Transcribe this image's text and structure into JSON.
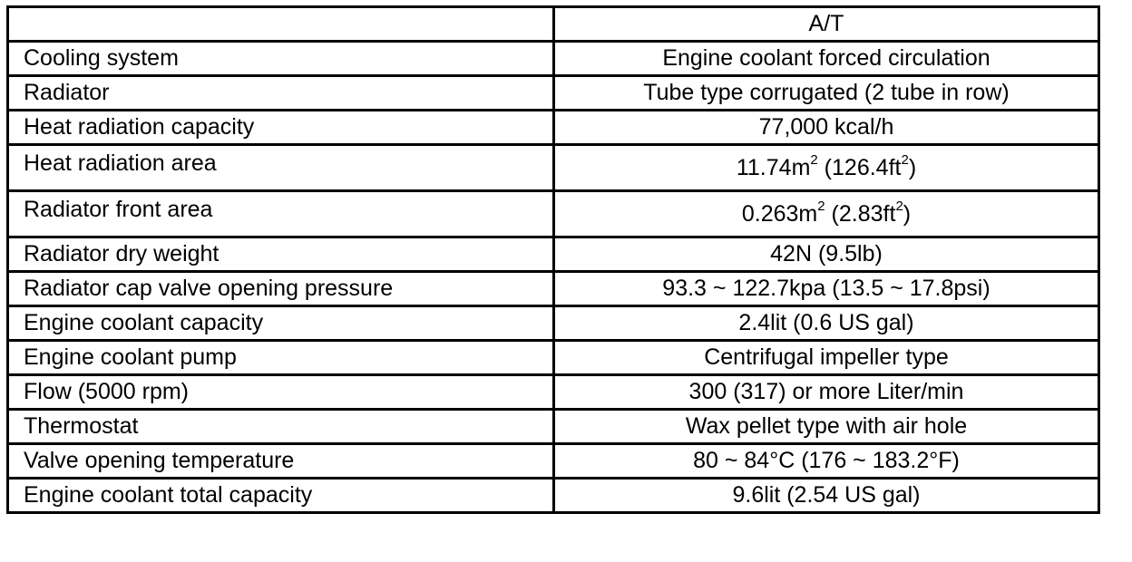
{
  "header": {
    "blank": "",
    "column": "A/T"
  },
  "rows": [
    {
      "label": "Cooling system",
      "value": "Engine coolant forced circulation"
    },
    {
      "label": "Radiator",
      "value": "Tube type corrugated (2 tube in row)"
    },
    {
      "label": "Heat radiation capacity",
      "value": "77,000 kcal/h"
    },
    {
      "label": "Heat radiation area",
      "v1": "11.74m",
      "s1": "2",
      "v2": " (126.4ft",
      "s2": "2",
      "v3": ")"
    },
    {
      "label": "Radiator front area",
      "v1": "0.263m",
      "s1": "2",
      "v2": " (2.83ft",
      "s2": "2",
      "v3": ")"
    },
    {
      "label": "Radiator dry weight",
      "value": "42N (9.5lb)"
    },
    {
      "label": "Radiator cap valve opening pressure",
      "value": "93.3 ~ 122.7kpa (13.5 ~ 17.8psi)"
    },
    {
      "label": "Engine coolant capacity",
      "value": "2.4lit (0.6 US gal)"
    },
    {
      "label": "Engine coolant pump",
      "value": "Centrifugal impeller type"
    },
    {
      "label": "Flow (5000 rpm)",
      "value": "300 (317) or more Liter/min"
    },
    {
      "label": "Thermostat",
      "value": "Wax pellet type with air hole"
    },
    {
      "label": "Valve opening temperature",
      "value": "80 ~ 84°C (176 ~ 183.2°F)"
    },
    {
      "label": "Engine coolant total capacity",
      "value": "9.6lit (2.54 US gal)"
    }
  ]
}
